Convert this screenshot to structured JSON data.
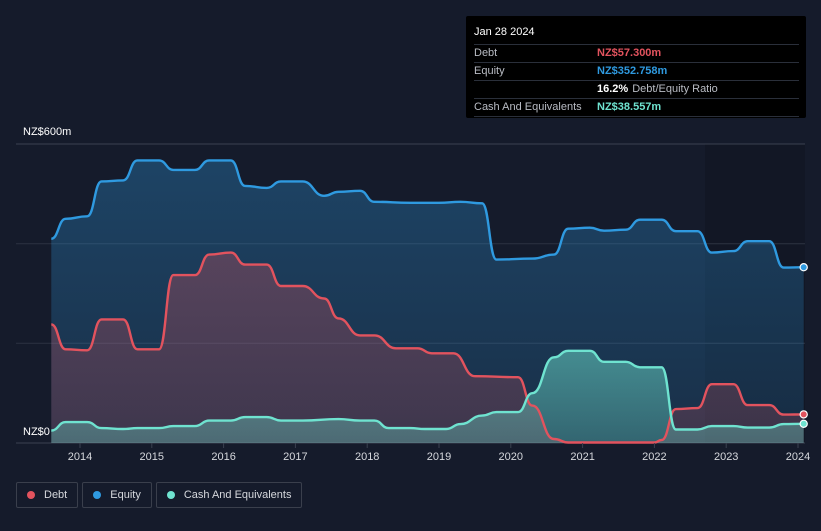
{
  "tooltip": {
    "date": "Jan 28 2024",
    "rows": [
      {
        "label": "Debt",
        "value": "NZ$57.300m",
        "color": "#e2535e"
      },
      {
        "label": "Equity",
        "value": "NZ$352.758m",
        "color": "#2f9ae0"
      },
      {
        "label": "",
        "value": "16.2%",
        "suffix": "Debt/Equity Ratio",
        "color": "#ffffff"
      },
      {
        "label": "Cash And Equivalents",
        "value": "NZ$38.557m",
        "color": "#6fe3d0"
      }
    ]
  },
  "legend": [
    {
      "label": "Debt",
      "color": "#e2535e"
    },
    {
      "label": "Equity",
      "color": "#2f9ae0"
    },
    {
      "label": "Cash And Equivalents",
      "color": "#6fe3d0"
    }
  ],
  "chart_data": {
    "type": "area",
    "title": "",
    "xlabel": "",
    "ylabel": "",
    "y_top_label": "NZ$600m",
    "y_bottom_label": "NZ$0",
    "ylim": [
      0,
      600
    ],
    "xlim": [
      2013.6,
      2024.08
    ],
    "x_tick_labels": [
      "2014",
      "2015",
      "2016",
      "2017",
      "2018",
      "2019",
      "2020",
      "2021",
      "2022",
      "2023",
      "2024"
    ],
    "x_ticks": [
      2014,
      2015,
      2016,
      2017,
      2018,
      2019,
      2020,
      2021,
      2022,
      2023,
      2024
    ],
    "series": [
      {
        "name": "Equity",
        "color": "#2f9ae0",
        "points": [
          [
            2013.6,
            410
          ],
          [
            2013.8,
            450
          ],
          [
            2014.1,
            455
          ],
          [
            2014.3,
            525
          ],
          [
            2014.6,
            527
          ],
          [
            2014.8,
            567
          ],
          [
            2015.1,
            567
          ],
          [
            2015.3,
            548
          ],
          [
            2015.6,
            548
          ],
          [
            2015.8,
            567
          ],
          [
            2016.1,
            567
          ],
          [
            2016.3,
            516
          ],
          [
            2016.6,
            512
          ],
          [
            2016.8,
            525
          ],
          [
            2017.1,
            525
          ],
          [
            2017.4,
            496
          ],
          [
            2017.6,
            504
          ],
          [
            2017.9,
            506
          ],
          [
            2018.1,
            484
          ],
          [
            2018.6,
            482
          ],
          [
            2019.0,
            482
          ],
          [
            2019.3,
            484
          ],
          [
            2019.6,
            481
          ],
          [
            2019.8,
            368
          ],
          [
            2020.3,
            370
          ],
          [
            2020.6,
            378
          ],
          [
            2020.8,
            430
          ],
          [
            2021.1,
            432
          ],
          [
            2021.3,
            426
          ],
          [
            2021.6,
            428
          ],
          [
            2021.8,
            448
          ],
          [
            2022.1,
            448
          ],
          [
            2022.3,
            425
          ],
          [
            2022.6,
            425
          ],
          [
            2022.8,
            382
          ],
          [
            2023.1,
            385
          ],
          [
            2023.3,
            405
          ],
          [
            2023.6,
            405
          ],
          [
            2023.8,
            352
          ],
          [
            2024.08,
            352.758
          ]
        ]
      },
      {
        "name": "Debt",
        "color": "#e2535e",
        "points": [
          [
            2013.6,
            238
          ],
          [
            2013.8,
            188
          ],
          [
            2014.1,
            186
          ],
          [
            2014.3,
            248
          ],
          [
            2014.6,
            248
          ],
          [
            2014.8,
            188
          ],
          [
            2015.1,
            188
          ],
          [
            2015.3,
            337
          ],
          [
            2015.6,
            337
          ],
          [
            2015.8,
            378
          ],
          [
            2016.1,
            382
          ],
          [
            2016.3,
            358
          ],
          [
            2016.6,
            358
          ],
          [
            2016.8,
            315
          ],
          [
            2017.1,
            315
          ],
          [
            2017.4,
            290
          ],
          [
            2017.6,
            250
          ],
          [
            2017.9,
            216
          ],
          [
            2018.1,
            216
          ],
          [
            2018.4,
            190
          ],
          [
            2018.7,
            190
          ],
          [
            2018.9,
            180
          ],
          [
            2019.2,
            180
          ],
          [
            2019.5,
            134
          ],
          [
            2020.1,
            132
          ],
          [
            2020.3,
            75
          ],
          [
            2020.6,
            8
          ],
          [
            2020.8,
            1
          ],
          [
            2021.5,
            1
          ],
          [
            2022.0,
            1
          ],
          [
            2022.1,
            6
          ],
          [
            2022.3,
            68
          ],
          [
            2022.6,
            70
          ],
          [
            2022.8,
            118
          ],
          [
            2023.1,
            118
          ],
          [
            2023.3,
            76
          ],
          [
            2023.6,
            76
          ],
          [
            2023.8,
            57
          ],
          [
            2024.08,
            57.3
          ]
        ]
      },
      {
        "name": "Cash And Equivalents",
        "color": "#6fe3d0",
        "points": [
          [
            2013.6,
            25
          ],
          [
            2013.8,
            42
          ],
          [
            2014.1,
            42
          ],
          [
            2014.3,
            30
          ],
          [
            2014.6,
            28
          ],
          [
            2014.8,
            30
          ],
          [
            2015.1,
            30
          ],
          [
            2015.3,
            34
          ],
          [
            2015.6,
            34
          ],
          [
            2015.8,
            45
          ],
          [
            2016.1,
            45
          ],
          [
            2016.3,
            52
          ],
          [
            2016.6,
            52
          ],
          [
            2016.8,
            45
          ],
          [
            2017.1,
            45
          ],
          [
            2017.6,
            48
          ],
          [
            2017.9,
            45
          ],
          [
            2018.1,
            45
          ],
          [
            2018.3,
            30
          ],
          [
            2018.6,
            30
          ],
          [
            2018.8,
            28
          ],
          [
            2019.1,
            28
          ],
          [
            2019.3,
            38
          ],
          [
            2019.6,
            55
          ],
          [
            2019.8,
            62
          ],
          [
            2020.1,
            62
          ],
          [
            2020.3,
            100
          ],
          [
            2020.6,
            172
          ],
          [
            2020.8,
            185
          ],
          [
            2021.1,
            185
          ],
          [
            2021.3,
            163
          ],
          [
            2021.6,
            163
          ],
          [
            2021.8,
            152
          ],
          [
            2022.1,
            152
          ],
          [
            2022.3,
            27
          ],
          [
            2022.6,
            27
          ],
          [
            2022.8,
            34
          ],
          [
            2023.1,
            34
          ],
          [
            2023.3,
            31
          ],
          [
            2023.6,
            31
          ],
          [
            2023.8,
            38
          ],
          [
            2024.08,
            38.557
          ]
        ]
      }
    ]
  }
}
